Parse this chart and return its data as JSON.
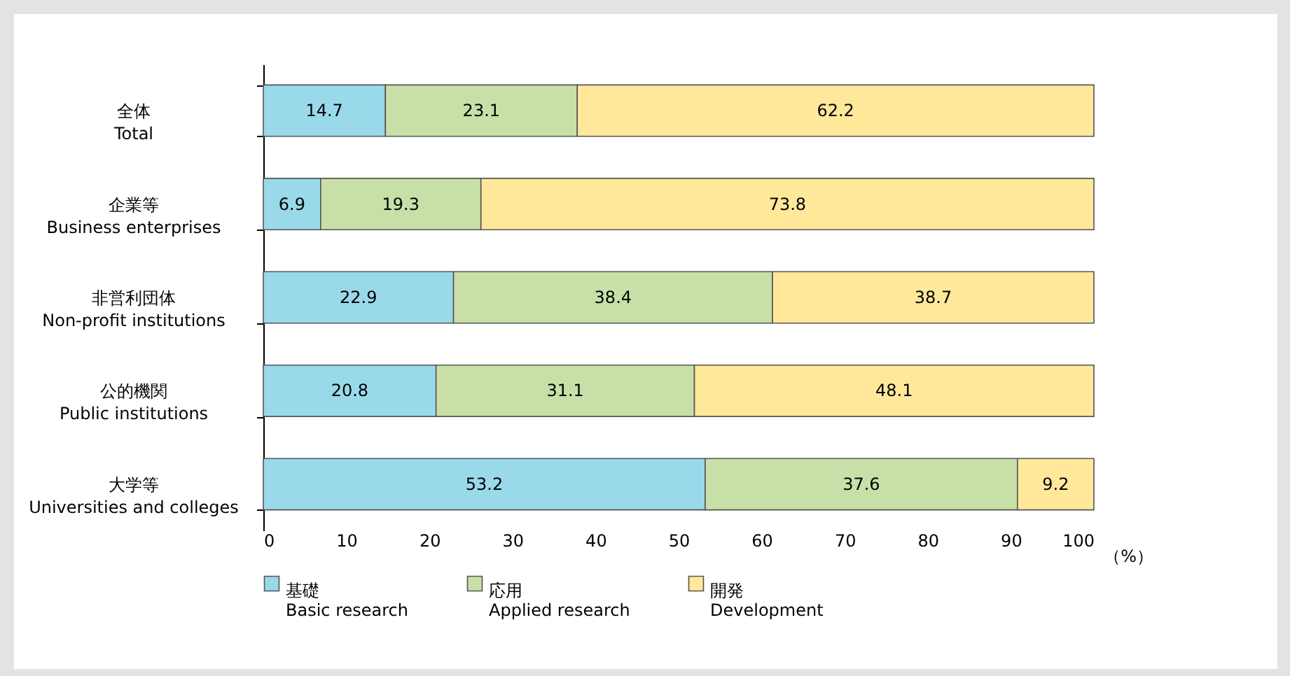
{
  "chart_data": {
    "type": "bar",
    "orientation": "horizontal",
    "stacked": true,
    "xlabel": "（%）",
    "categories": [
      "全体\nTotal",
      "企業等\nBusiness enterprises",
      "非営利団体\nNon-profit institutions",
      "公的機関\nPublic institutions",
      "大学等\nUniversities and colleges"
    ],
    "series": [
      {
        "name": "基礎\nBasic research",
        "color": "#99d9ea",
        "values": [
          14.7,
          6.9,
          22.9,
          20.8,
          53.2
        ]
      },
      {
        "name": "応用\nApplied research",
        "color": "#c8e0a8",
        "values": [
          23.1,
          19.3,
          38.4,
          31.1,
          37.6
        ]
      },
      {
        "name": "開発\nDevelopment",
        "color": "#ffe89a",
        "values": [
          62.2,
          73.8,
          38.7,
          48.1,
          9.2
        ]
      }
    ],
    "xlim": [
      0,
      100
    ],
    "xticks": [
      0,
      10,
      20,
      30,
      40,
      50,
      60,
      70,
      80,
      90,
      100
    ],
    "data_labels": true,
    "legend": "bottom",
    "grid": false
  }
}
